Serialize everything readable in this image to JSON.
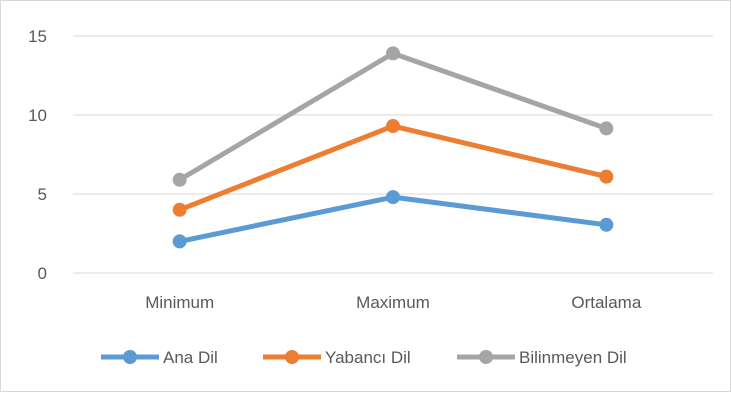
{
  "chart_data": {
    "type": "line",
    "categories": [
      "Minimum",
      "Maximum",
      "Ortalama"
    ],
    "ylim": [
      0,
      15
    ],
    "yticks": [
      0,
      5,
      10,
      15
    ],
    "grid": true,
    "legend_position": "bottom",
    "series": [
      {
        "name": "Ana Dil",
        "values": [
          2.0,
          4.8,
          3.05
        ],
        "color": "#5b9bd5"
      },
      {
        "name": "Yabancı Dil",
        "values": [
          4.0,
          9.3,
          6.1
        ],
        "color": "#ed7d31"
      },
      {
        "name": "Bilinmeyen Dil",
        "values": [
          5.9,
          13.9,
          9.15
        ],
        "color": "#a5a5a5"
      }
    ]
  }
}
